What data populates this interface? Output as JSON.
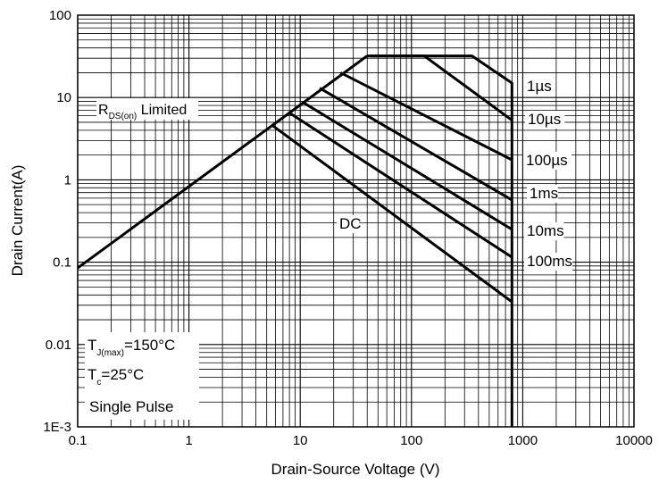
{
  "chart_data": {
    "type": "line",
    "x_scale": "log",
    "y_scale": "log",
    "xlim": [
      0.1,
      10000
    ],
    "ylim": [
      0.001,
      100
    ],
    "grid": true,
    "xlabel": "Drain-Source Voltage (V)",
    "ylabel": "Drain Current(A)",
    "x_tick_labels": [
      "0.1",
      "1",
      "10",
      "100",
      "1000",
      "10000"
    ],
    "y_tick_labels": [
      "1E-3",
      "0.01",
      "0.1",
      "1",
      "10",
      "100"
    ],
    "rds_limit_label": {
      "main": "R",
      "sub": "DS(on)",
      "rest": " Limited"
    },
    "conditions": {
      "tj": {
        "main": "T",
        "sub": "J(max)",
        "rest": "=150°C"
      },
      "tc": {
        "main": "T",
        "sub": "c",
        "rest": "=25°C"
      },
      "pulse": "Single Pulse"
    },
    "rds_limit_line": {
      "x": [
        0.1,
        40
      ],
      "y": [
        0.085,
        32
      ]
    },
    "series": [
      {
        "name": "1µs",
        "x": [
          40,
          350,
          800,
          800
        ],
        "y": [
          32,
          32,
          15,
          0.001
        ]
      },
      {
        "name": "10µs",
        "x": [
          43,
          130,
          800
        ],
        "y": [
          32,
          32,
          5.3
        ]
      },
      {
        "name": "100µs",
        "x": [
          23,
          800
        ],
        "y": [
          20,
          1.75
        ]
      },
      {
        "name": "1ms",
        "x": [
          15,
          800
        ],
        "y": [
          13,
          0.57
        ]
      },
      {
        "name": "10ms",
        "x": [
          10.5,
          800
        ],
        "y": [
          8.8,
          0.25
        ]
      },
      {
        "name": "100ms",
        "x": [
          8,
          800
        ],
        "y": [
          6.5,
          0.115
        ]
      },
      {
        "name": "DC",
        "x": [
          5.6,
          800
        ],
        "y": [
          4.6,
          0.033
        ]
      }
    ]
  }
}
